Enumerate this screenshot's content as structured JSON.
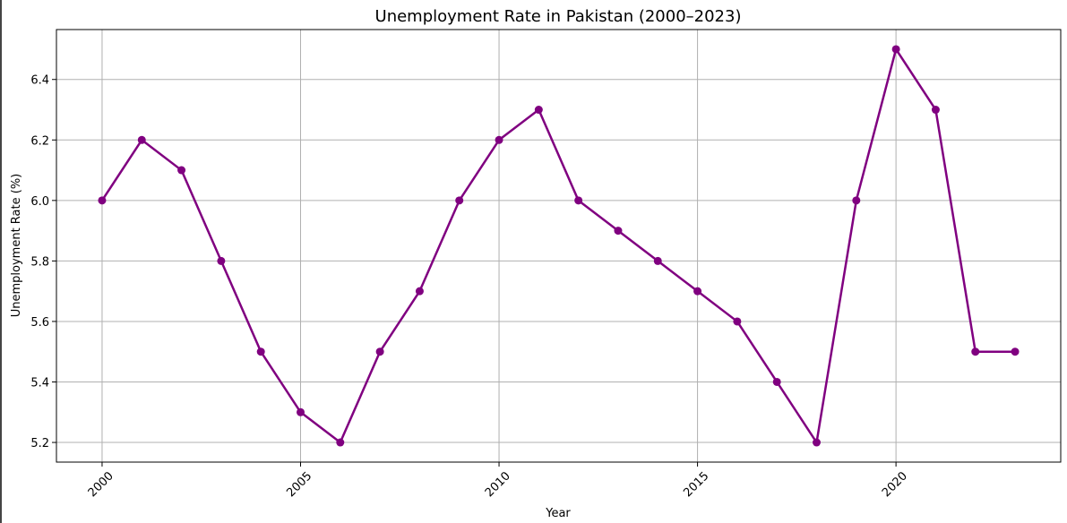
{
  "chart_data": {
    "type": "line",
    "title": "Unemployment Rate in Pakistan (2000–2023)",
    "xlabel": "Year",
    "ylabel": "Unemployment Rate (%)",
    "x": [
      2000,
      2001,
      2002,
      2003,
      2004,
      2005,
      2006,
      2007,
      2008,
      2009,
      2010,
      2011,
      2012,
      2013,
      2014,
      2015,
      2016,
      2017,
      2018,
      2019,
      2020,
      2021,
      2022,
      2023
    ],
    "series": [
      {
        "values": [
          6.0,
          6.2,
          6.1,
          5.8,
          5.5,
          5.3,
          5.2,
          5.5,
          5.7,
          6.0,
          6.2,
          6.3,
          6.0,
          5.9,
          5.8,
          5.7,
          5.6,
          5.4,
          5.2,
          6.0,
          6.5,
          6.3,
          5.5,
          5.5
        ],
        "color": "#800080",
        "marker": "circle"
      }
    ],
    "xlim": [
      1998.85,
      2024.15
    ],
    "ylim": [
      5.135,
      6.565
    ],
    "xticks": [
      2000,
      2005,
      2010,
      2015,
      2020
    ],
    "xtick_labels": [
      "2000",
      "2005",
      "2010",
      "2015",
      "2020"
    ],
    "yticks": [
      5.2,
      5.4,
      5.6,
      5.8,
      6.0,
      6.2,
      6.4
    ],
    "ytick_labels": [
      "5.2",
      "5.4",
      "5.6",
      "5.8",
      "6.0",
      "6.2",
      "6.4"
    ],
    "xtick_rotation": 45,
    "grid": true,
    "grid_color": "#b0b0b0",
    "legend": "none"
  }
}
